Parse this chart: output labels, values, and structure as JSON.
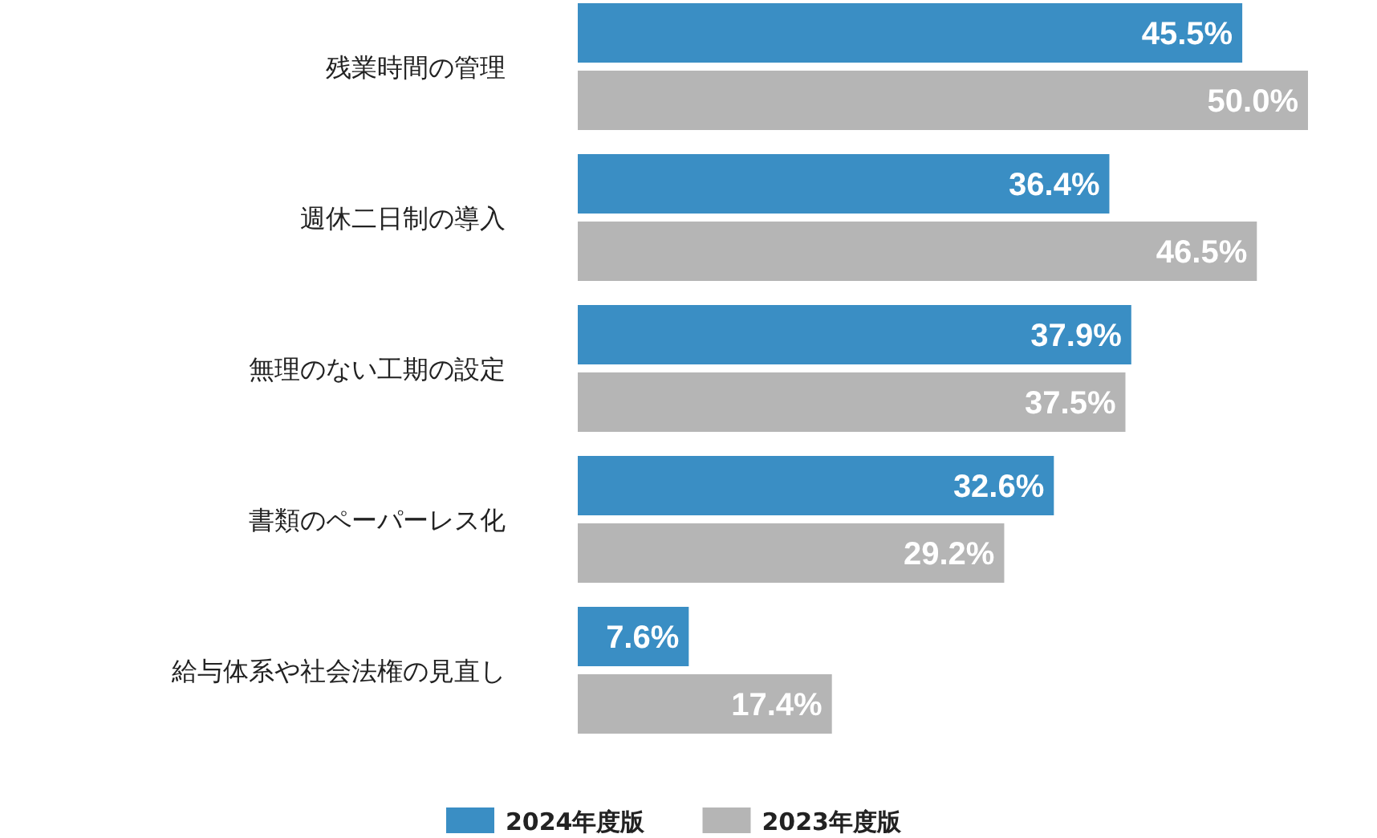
{
  "chart_data": {
    "type": "bar",
    "orientation": "horizontal",
    "legend": "bottom",
    "categories": [
      "残業時間の管理",
      "週休二日制の導入",
      "無理のない工期の設定",
      "書類のペーパーレス化",
      "給与体系や社会法権の見直し"
    ],
    "series": [
      {
        "name": "2024年度版",
        "color": "#3a8ec4",
        "values": [
          45.5,
          36.4,
          37.9,
          32.6,
          7.6
        ],
        "value_labels": [
          "45.5%",
          "36.4%",
          "37.9%",
          "32.6%",
          "7.6%"
        ]
      },
      {
        "name": "2023年度版",
        "color": "#b5b5b5",
        "values": [
          50.0,
          46.5,
          37.5,
          29.2,
          17.4
        ],
        "value_labels": [
          "50.0%",
          "46.5%",
          "37.5%",
          "29.2%",
          "17.4%"
        ]
      }
    ]
  }
}
